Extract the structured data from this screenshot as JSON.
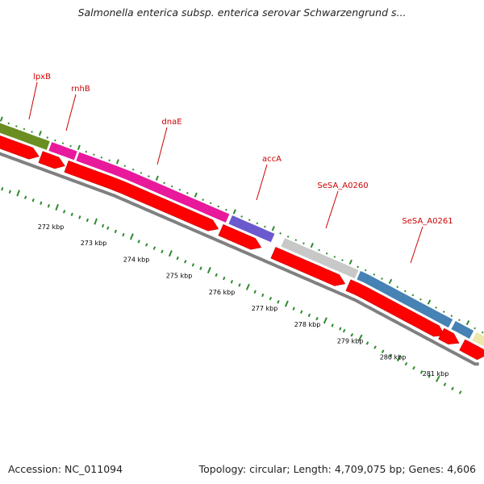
{
  "title": "Salmonella enterica subsp. enterica serovar Schwarzengrund s...",
  "accession": "Accession: NC_011094",
  "summary": "Topology: circular; Length: 4,709,075 bp; Genes: 4,606",
  "genes": [
    {
      "label": "lpxB",
      "color": "#6b8e23"
    },
    {
      "label": "rnhB",
      "color": "#e8199b"
    },
    {
      "label": "dnaE",
      "color": "#e8199b"
    },
    {
      "label": "accA",
      "color": "#6a5acd"
    },
    {
      "label": "SeSA_A0260",
      "color": "#c8c8c8"
    },
    {
      "label": "SeSA_A0261",
      "color": "#4682b4"
    },
    {
      "label": "",
      "color": "#4682b4"
    },
    {
      "label": "",
      "color": "#eee8aa"
    }
  ],
  "ticks": [
    "272 kbp",
    "273 kbp",
    "274 kbp",
    "275 kbp",
    "276 kbp",
    "277 kbp",
    "278 kbp",
    "279 kbp",
    "280 kbp",
    "281 kbp"
  ],
  "colors": {
    "arrow": "#ff0000",
    "backbone": "#808080",
    "tick": "#2e8b2e",
    "label": "#cc0000"
  }
}
